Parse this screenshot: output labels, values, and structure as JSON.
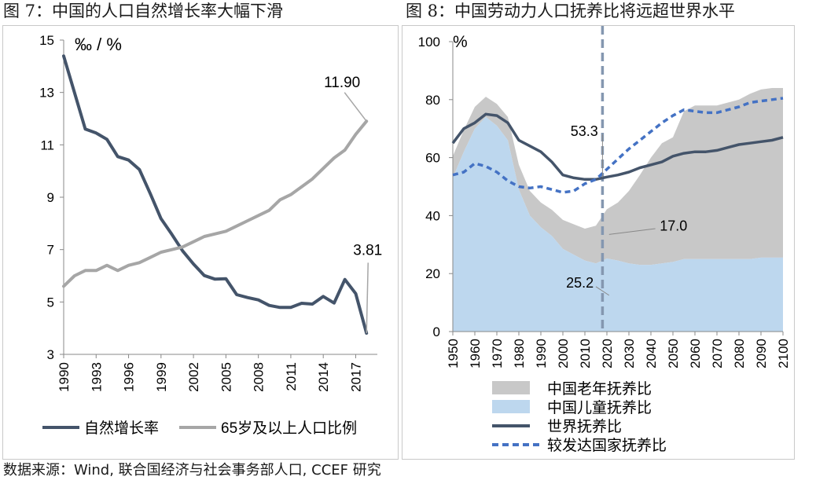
{
  "figure7": {
    "title": "图 7：中国的人口自然增长率大幅下滑",
    "chart_data": {
      "type": "line",
      "unit_label": "‰ / %",
      "ylim": [
        3,
        15
      ],
      "yticks": [
        3,
        5,
        7,
        9,
        11,
        13,
        15
      ],
      "xlim": [
        1990,
        2019
      ],
      "xticks": [
        1990,
        1993,
        1996,
        1999,
        2002,
        2005,
        2008,
        2011,
        2014,
        2017
      ],
      "grid": false,
      "legend_position": "bottom",
      "series": [
        {
          "name": "自然增长率",
          "color": "#44546a",
          "x": [
            1990,
            1992,
            1993,
            1994,
            1995,
            1996,
            1997,
            1998,
            1999,
            2000,
            2001,
            2002,
            2003,
            2004,
            2005,
            2006,
            2007,
            2008,
            2009,
            2010,
            2011,
            2012,
            2013,
            2014,
            2015,
            2016,
            2017,
            2018
          ],
          "values": [
            14.39,
            11.6,
            11.45,
            11.21,
            10.55,
            10.42,
            10.06,
            9.14,
            8.18,
            7.58,
            6.95,
            6.45,
            6.01,
            5.87,
            5.89,
            5.28,
            5.17,
            5.08,
            4.87,
            4.79,
            4.79,
            4.95,
            4.92,
            5.21,
            4.96,
            5.86,
            5.32,
            3.81
          ]
        },
        {
          "name": "65岁及以上人口比例",
          "color": "#a6a6a6",
          "x": [
            1990,
            1991,
            1992,
            1993,
            1994,
            1995,
            1996,
            1997,
            1998,
            1999,
            2000,
            2001,
            2002,
            2003,
            2004,
            2005,
            2006,
            2007,
            2008,
            2009,
            2010,
            2011,
            2012,
            2013,
            2014,
            2015,
            2016,
            2017,
            2018
          ],
          "values": [
            5.6,
            6.0,
            6.2,
            6.2,
            6.4,
            6.2,
            6.4,
            6.5,
            6.7,
            6.9,
            7.0,
            7.1,
            7.3,
            7.5,
            7.6,
            7.7,
            7.9,
            8.1,
            8.3,
            8.5,
            8.9,
            9.1,
            9.4,
            9.7,
            10.1,
            10.5,
            10.8,
            11.4,
            11.9
          ]
        }
      ],
      "annotations": [
        {
          "text": "11.90",
          "series": "65岁及以上人口比例",
          "x": 2018,
          "y": 11.9
        },
        {
          "text": "3.81",
          "series": "自然增长率",
          "x": 2018,
          "y": 3.81
        }
      ]
    }
  },
  "figure8": {
    "title": "图 8：中国劳动力人口抚养比将远超世界水平",
    "chart_data": {
      "type": "area",
      "unit_label": "%",
      "ylim": [
        0,
        100
      ],
      "yticks": [
        0,
        20,
        40,
        60,
        80,
        100
      ],
      "xlim": [
        1950,
        2100
      ],
      "xticks": [
        1950,
        1960,
        1970,
        1980,
        1990,
        2000,
        2010,
        2020,
        2030,
        2040,
        2050,
        2060,
        2070,
        2080,
        2090,
        2100
      ],
      "grid": false,
      "legend_position": "bottom",
      "vertical_marker_x": 2018,
      "x": [
        1950,
        1955,
        1960,
        1965,
        1970,
        1975,
        1980,
        1985,
        1990,
        1995,
        2000,
        2005,
        2010,
        2015,
        2020,
        2025,
        2030,
        2035,
        2040,
        2045,
        2050,
        2055,
        2060,
        2065,
        2070,
        2075,
        2080,
        2085,
        2090,
        2095,
        2100
      ],
      "series": [
        {
          "name": "中国老年抚养比",
          "color": "#c8c8c8",
          "kind": "stacked-area",
          "values": [
            7.5,
            7.5,
            7.5,
            7.0,
            7.5,
            8.0,
            8.5,
            8.5,
            8.5,
            9.0,
            10.0,
            10.5,
            11.0,
            13.0,
            17.0,
            20.0,
            25.0,
            31.0,
            37.0,
            41.5,
            43.0,
            51.0,
            53.0,
            53.0,
            53.0,
            54.0,
            55.0,
            57.0,
            58.0,
            58.5,
            58.5
          ]
        },
        {
          "name": "中国儿童抚养比",
          "color": "#bdd7ee",
          "kind": "stacked-area",
          "values": [
            53.0,
            62.0,
            70.0,
            74.0,
            71.0,
            66.0,
            49.0,
            40.0,
            36.0,
            33.0,
            28.5,
            26.5,
            24.5,
            23.5,
            25.2,
            24.5,
            23.5,
            23.0,
            23.0,
            23.5,
            24.0,
            25.0,
            25.0,
            25.0,
            25.0,
            25.0,
            25.0,
            25.0,
            25.5,
            25.5,
            25.5
          ]
        },
        {
          "name": "世界抚养比",
          "color": "#44546a",
          "kind": "line",
          "values": [
            65.0,
            70.0,
            72.0,
            75.0,
            74.5,
            72.0,
            66.0,
            64.0,
            62.0,
            58.5,
            54.0,
            53.0,
            52.5,
            52.5,
            53.3,
            54.0,
            55.0,
            56.5,
            57.5,
            58.5,
            60.5,
            61.5,
            62.0,
            62.0,
            62.5,
            63.5,
            64.5,
            65.0,
            65.5,
            66.0,
            67.0
          ]
        },
        {
          "name": "较发达国家抚养比",
          "color": "#4472c4",
          "kind": "dashed-line",
          "values": [
            54.0,
            55.0,
            58.0,
            57.0,
            55.0,
            52.0,
            50.0,
            49.5,
            50.0,
            49.0,
            48.0,
            48.5,
            51.0,
            52.5,
            56.0,
            59.5,
            63.0,
            66.0,
            69.0,
            72.0,
            74.5,
            76.5,
            76.0,
            75.5,
            75.5,
            76.5,
            77.5,
            79.0,
            79.5,
            80.0,
            80.5
          ]
        }
      ],
      "annotations": [
        {
          "text": "53.3",
          "series": "世界抚养比",
          "x": 2020,
          "y": 53.3
        },
        {
          "text": "17.0",
          "series": "中国老年抚养比",
          "x": 2020,
          "y": 17.0
        },
        {
          "text": "25.2",
          "series": "中国儿童抚养比",
          "x": 2020,
          "y": 25.2
        }
      ]
    }
  },
  "source": "数据来源：Wind, 联合国经济与社会事务部人口, CCEF 研究"
}
